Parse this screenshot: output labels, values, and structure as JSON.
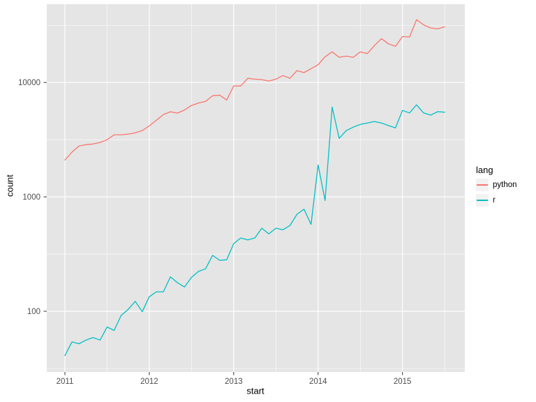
{
  "figure": {
    "xlabel": "start",
    "ylabel": "count",
    "legend": {
      "title": "lang",
      "entries": [
        {
          "label": "python",
          "color": "#F8766D"
        },
        {
          "label": "r",
          "color": "#00BFC4"
        }
      ]
    }
  },
  "colors": {
    "background": "#FFFFFF",
    "panel_bg": "#E5E5E5",
    "grid": "#FFFFFF",
    "tick_mark": "#333333",
    "tick_label": "#4D4D4D",
    "axis_title": "#000000",
    "legend_key_bg": "#F2F2F2",
    "python_line": "#F8766D",
    "r_line": "#00BFC4"
  },
  "chart_data": {
    "type": "line",
    "title": "",
    "xlabel": "start",
    "ylabel": "count",
    "y_scale": "log10",
    "grid": true,
    "legend_position": "right",
    "x_unit": "month",
    "x_start_year": 2011,
    "x_start_month": 1,
    "x_ticks": [
      2011,
      2012,
      2013,
      2014,
      2015
    ],
    "x_minor_ticks": [
      2011.5,
      2012.5,
      2013.5,
      2014.5,
      2015.5
    ],
    "y_ticks": [
      100,
      1000,
      10000
    ],
    "y_minor_ticks": [
      31.6,
      316,
      3162,
      31623
    ],
    "x_domain": [
      2010.78,
      2015.74
    ],
    "y_domain": [
      29.5,
      48000
    ],
    "series": [
      {
        "name": "python",
        "color": "#F8766D",
        "values": [
          2100,
          2460,
          2780,
          2860,
          2900,
          2990,
          3160,
          3490,
          3490,
          3540,
          3630,
          3800,
          4170,
          4680,
          5250,
          5550,
          5400,
          5750,
          6300,
          6620,
          6840,
          7660,
          7750,
          7030,
          9320,
          9320,
          10880,
          10700,
          10600,
          10300,
          10700,
          11500,
          10900,
          12700,
          12200,
          13200,
          14300,
          16800,
          18540,
          16600,
          17000,
          16600,
          18500,
          17900,
          21000,
          24200,
          21800,
          20700,
          25200,
          25000,
          35400,
          31900,
          30000,
          29400,
          30700
        ]
      },
      {
        "name": "r",
        "color": "#00BFC4",
        "values": [
          41,
          54,
          52,
          56,
          59,
          56,
          73,
          68,
          92,
          104,
          122,
          99,
          134,
          148,
          148,
          200,
          178,
          163,
          198,
          223,
          235,
          308,
          279,
          282,
          390,
          437,
          420,
          437,
          532,
          475,
          532,
          516,
          562,
          705,
          780,
          575,
          1900,
          930,
          6100,
          3250,
          3800,
          4070,
          4300,
          4430,
          4560,
          4430,
          4200,
          4010,
          5700,
          5420,
          6380,
          5420,
          5190,
          5560,
          5500
        ]
      }
    ]
  }
}
